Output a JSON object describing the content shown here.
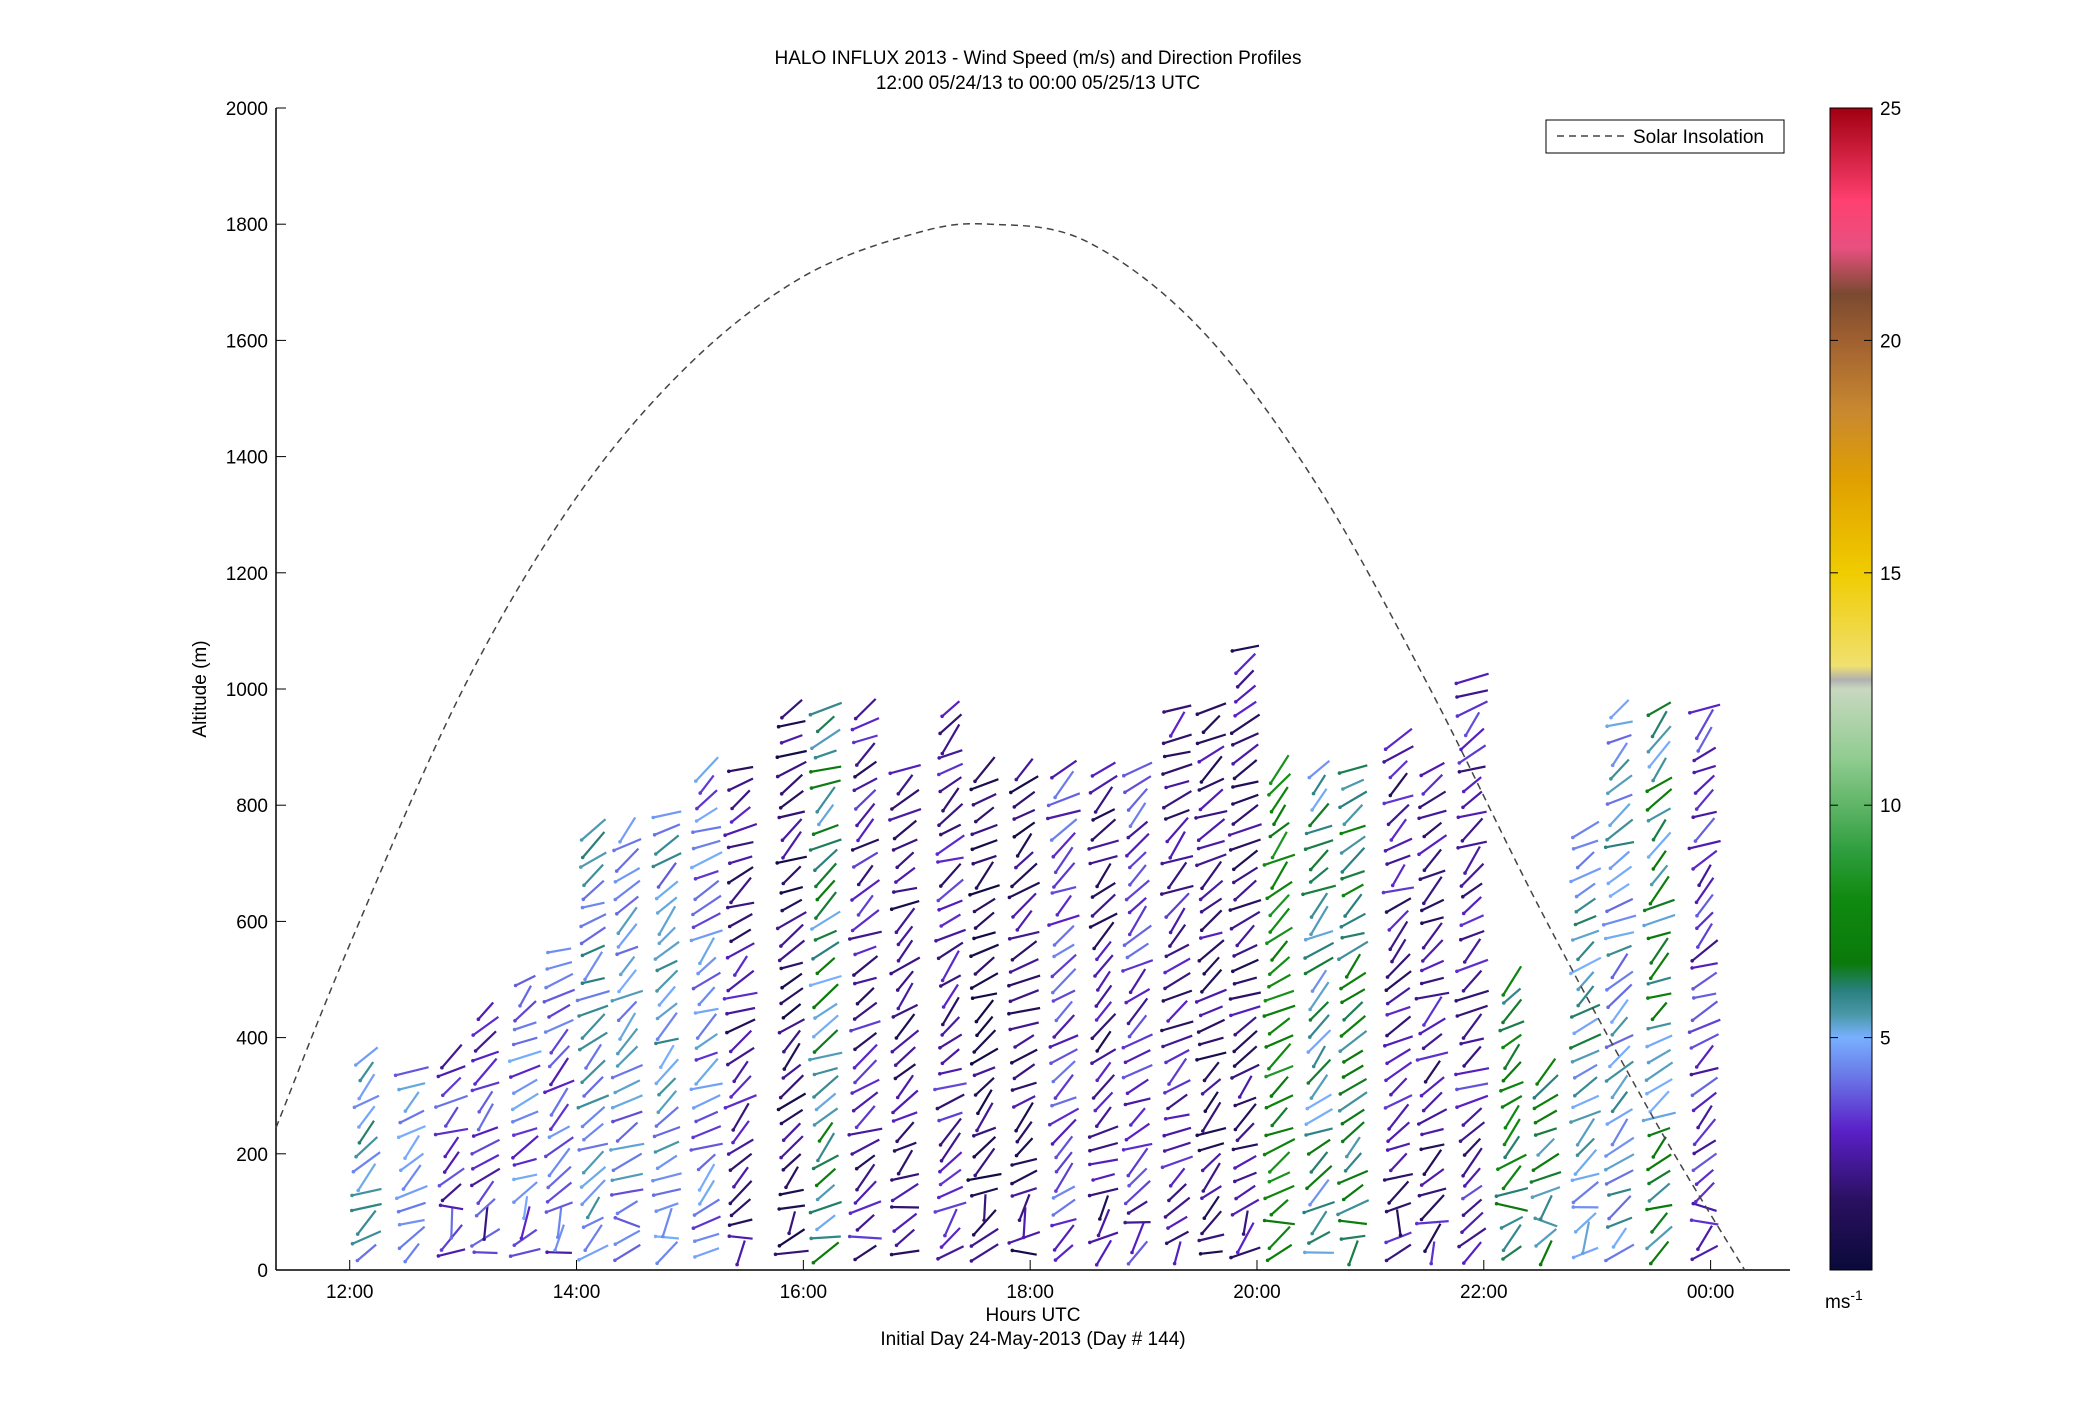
{
  "chart_data": {
    "type": "vector_field",
    "title": "HALO INFLUX 2013 - Wind Speed (m/s) and Direction Profiles",
    "subtitle": "12:00 05/24/13 to 00:00 05/25/13  UTC",
    "xlabel": "Hours UTC",
    "xlabel2": "Initial Day 24-May-2013 (Day # 144)",
    "ylabel": "Altitude (m)",
    "xlim_hours": [
      11.35,
      24.7
    ],
    "ylim": [
      0,
      2000
    ],
    "x_ticks": [
      {
        "hour": 12,
        "label": "12:00"
      },
      {
        "hour": 14,
        "label": "14:00"
      },
      {
        "hour": 16,
        "label": "16:00"
      },
      {
        "hour": 18,
        "label": "18:00"
      },
      {
        "hour": 20,
        "label": "20:00"
      },
      {
        "hour": 22,
        "label": "22:00"
      },
      {
        "hour": 24,
        "label": "00:00"
      }
    ],
    "y_ticks": [
      0,
      200,
      400,
      600,
      800,
      1000,
      1200,
      1400,
      1600,
      1800,
      2000
    ],
    "grid": false,
    "legend": {
      "position": "top-right",
      "entries": [
        {
          "label": "Solar Insolation",
          "style": "dashed",
          "color": "#444444"
        }
      ]
    },
    "colorbar": {
      "range": [
        0,
        25
      ],
      "ticks": [
        5,
        10,
        15,
        20,
        25
      ],
      "unit_label": "ms",
      "unit_exponent": "-1",
      "stops": [
        {
          "v": 0,
          "color": "#0a0a3a"
        },
        {
          "v": 1.5,
          "color": "#2a1060"
        },
        {
          "v": 3,
          "color": "#5a20c8"
        },
        {
          "v": 4.2,
          "color": "#6a7ae8"
        },
        {
          "v": 5,
          "color": "#78b0ff"
        },
        {
          "v": 5.5,
          "color": "#4a98a8"
        },
        {
          "v": 6,
          "color": "#2a8080"
        },
        {
          "v": 6.6,
          "color": "#0a7a0a"
        },
        {
          "v": 8,
          "color": "#108a10"
        },
        {
          "v": 9,
          "color": "#2e9e3e"
        },
        {
          "v": 11,
          "color": "#90cc90"
        },
        {
          "v": 12.5,
          "color": "#c8d8c0"
        },
        {
          "v": 12.7,
          "color": "#b0b0b0"
        },
        {
          "v": 13,
          "color": "#f0e070"
        },
        {
          "v": 15,
          "color": "#f0cc00"
        },
        {
          "v": 17,
          "color": "#e0a000"
        },
        {
          "v": 18.5,
          "color": "#c88830"
        },
        {
          "v": 20,
          "color": "#a06030"
        },
        {
          "v": 21,
          "color": "#7a4a30"
        },
        {
          "v": 22,
          "color": "#e85080"
        },
        {
          "v": 23,
          "color": "#ff4070"
        },
        {
          "v": 25,
          "color": "#a00010"
        }
      ]
    },
    "solar_insolation": {
      "style": "dashed",
      "color": "#444444",
      "points": [
        {
          "hour": 11.35,
          "alt": 245
        },
        {
          "hour": 12.0,
          "alt": 560
        },
        {
          "hour": 13.0,
          "alt": 1000
        },
        {
          "hour": 14.0,
          "alt": 1330
        },
        {
          "hour": 15.0,
          "alt": 1560
        },
        {
          "hour": 16.0,
          "alt": 1710
        },
        {
          "hour": 17.0,
          "alt": 1785
        },
        {
          "hour": 17.65,
          "alt": 1800
        },
        {
          "hour": 18.5,
          "alt": 1770
        },
        {
          "hour": 19.5,
          "alt": 1620
        },
        {
          "hour": 20.5,
          "alt": 1360
        },
        {
          "hour": 21.5,
          "alt": 1010
        },
        {
          "hour": 22.5,
          "alt": 620
        },
        {
          "hour": 23.5,
          "alt": 260
        },
        {
          "hour": 24.3,
          "alt": 0
        }
      ]
    },
    "profiles": [
      {
        "hour": 12.15,
        "top": 370,
        "speed": 5.2
      },
      {
        "hour": 12.55,
        "top": 360,
        "speed": 4.5
      },
      {
        "hour": 12.9,
        "top": 380,
        "speed": 3.2
      },
      {
        "hour": 13.2,
        "top": 470,
        "speed": 3.0
      },
      {
        "hour": 13.55,
        "top": 520,
        "speed": 4.0
      },
      {
        "hour": 13.85,
        "top": 560,
        "speed": 3.6
      },
      {
        "hour": 14.15,
        "top": 760,
        "speed": 5.0
      },
      {
        "hour": 14.45,
        "top": 760,
        "speed": 4.6
      },
      {
        "hour": 14.8,
        "top": 800,
        "speed": 4.8
      },
      {
        "hour": 15.15,
        "top": 880,
        "speed": 4.2
      },
      {
        "hour": 15.45,
        "top": 880,
        "speed": 2.2
      },
      {
        "hour": 15.9,
        "top": 990,
        "speed": 1.5
      },
      {
        "hour": 16.2,
        "top": 980,
        "speed": 6.0
      },
      {
        "hour": 16.55,
        "top": 980,
        "speed": 2.4
      },
      {
        "hour": 16.9,
        "top": 880,
        "speed": 1.8
      },
      {
        "hour": 17.3,
        "top": 980,
        "speed": 2.6
      },
      {
        "hour": 17.6,
        "top": 880,
        "speed": 1.2
      },
      {
        "hour": 17.95,
        "top": 880,
        "speed": 1.6
      },
      {
        "hour": 18.3,
        "top": 880,
        "speed": 3.4
      },
      {
        "hour": 18.65,
        "top": 880,
        "speed": 2.0
      },
      {
        "hour": 18.95,
        "top": 880,
        "speed": 3.2
      },
      {
        "hour": 19.3,
        "top": 990,
        "speed": 2.4
      },
      {
        "hour": 19.6,
        "top": 980,
        "speed": 1.8
      },
      {
        "hour": 19.9,
        "top": 1090,
        "speed": 2.0
      },
      {
        "hour": 20.2,
        "top": 880,
        "speed": 7.5
      },
      {
        "hour": 20.55,
        "top": 880,
        "speed": 5.6
      },
      {
        "hour": 20.85,
        "top": 880,
        "speed": 6.5
      },
      {
        "hour": 21.25,
        "top": 920,
        "speed": 2.4
      },
      {
        "hour": 21.55,
        "top": 880,
        "speed": 2.2
      },
      {
        "hour": 21.9,
        "top": 1020,
        "speed": 2.6
      },
      {
        "hour": 22.25,
        "top": 500,
        "speed": 6.8
      },
      {
        "hour": 22.55,
        "top": 350,
        "speed": 6.2
      },
      {
        "hour": 22.9,
        "top": 760,
        "speed": 5.3
      },
      {
        "hour": 23.2,
        "top": 980,
        "speed": 5.0
      },
      {
        "hour": 23.55,
        "top": 990,
        "speed": 6.0
      },
      {
        "hour": 23.95,
        "top": 990,
        "speed": 3.0
      }
    ]
  }
}
